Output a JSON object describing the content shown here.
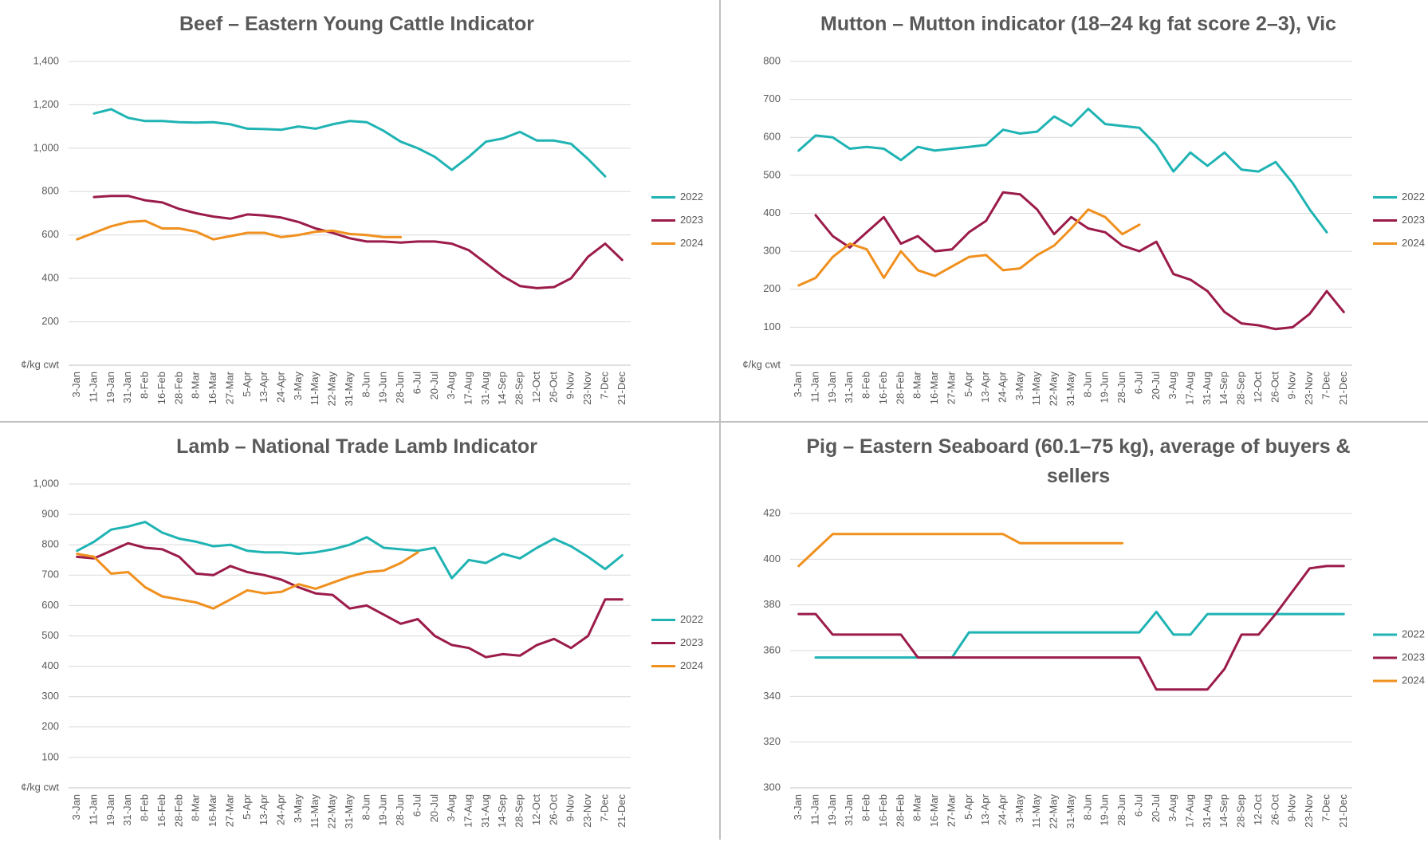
{
  "chart_data": [
    {
      "type": "line",
      "title": "Beef – Eastern Young Cattle Indicator",
      "y_label": "¢/kg cwt",
      "categories": [
        "3-Jan",
        "11-Jan",
        "19-Jan",
        "31-Jan",
        "8-Feb",
        "16-Feb",
        "28-Feb",
        "8-Mar",
        "16-Mar",
        "27-Mar",
        "5-Apr",
        "13-Apr",
        "24-Apr",
        "3-May",
        "11-May",
        "22-May",
        "31-May",
        "8-Jun",
        "19-Jun",
        "28-Jun",
        "6-Jul",
        "20-Jul",
        "3-Aug",
        "17-Aug",
        "31-Aug",
        "14-Sep",
        "28-Sep",
        "12-Oct",
        "26-Oct",
        "9-Nov",
        "23-Nov",
        "7-Dec",
        "21-Dec"
      ],
      "series": [
        {
          "name": "2022",
          "color": "#1fb3b3",
          "values": [
            null,
            1160,
            1180,
            1140,
            1125,
            1125,
            1120,
            1118,
            1120,
            1110,
            1090,
            1088,
            1085,
            1100,
            1090,
            1110,
            1125,
            1120,
            1080,
            1030,
            1000,
            960,
            900,
            960,
            1030,
            1045,
            1075,
            1035,
            1035,
            1020,
            950,
            870,
            null
          ]
        },
        {
          "name": "2023",
          "color": "#9b1b4a",
          "values": [
            null,
            775,
            780,
            780,
            760,
            750,
            720,
            700,
            685,
            675,
            695,
            690,
            680,
            660,
            630,
            610,
            585,
            570,
            570,
            565,
            570,
            570,
            560,
            530,
            470,
            410,
            365,
            355,
            360,
            400,
            500,
            560,
            485
          ]
        },
        {
          "name": "2024",
          "color": "#f0901e",
          "values": [
            580,
            610,
            640,
            660,
            665,
            630,
            630,
            615,
            580,
            595,
            610,
            610,
            590,
            600,
            615,
            620,
            605,
            600,
            590,
            590,
            null,
            null,
            null,
            null,
            null,
            null,
            null,
            null,
            null,
            null,
            null,
            null,
            null
          ]
        }
      ],
      "ylim": [
        0,
        1400
      ],
      "yticks": [
        200,
        400,
        600,
        800,
        {
          "value": 1000,
          "label": "1,000"
        },
        {
          "value": 1200,
          "label": "1,200"
        },
        {
          "value": 1400,
          "label": "1,400"
        }
      ],
      "grid": true,
      "legend": "right"
    },
    {
      "type": "line",
      "title": "Mutton – Mutton indicator (18–24 kg fat score 2–3), Vic",
      "y_label": "¢/kg cwt",
      "categories": [
        "3-Jan",
        "11-Jan",
        "19-Jan",
        "31-Jan",
        "8-Feb",
        "16-Feb",
        "28-Feb",
        "8-Mar",
        "16-Mar",
        "27-Mar",
        "5-Apr",
        "13-Apr",
        "24-Apr",
        "3-May",
        "11-May",
        "22-May",
        "31-May",
        "8-Jun",
        "19-Jun",
        "28-Jun",
        "6-Jul",
        "20-Jul",
        "3-Aug",
        "17-Aug",
        "31-Aug",
        "14-Sep",
        "28-Sep",
        "12-Oct",
        "26-Oct",
        "9-Nov",
        "23-Nov",
        "7-Dec",
        "21-Dec"
      ],
      "series": [
        {
          "name": "2022",
          "color": "#1fb3b3",
          "values": [
            565,
            605,
            600,
            570,
            575,
            570,
            540,
            575,
            565,
            570,
            575,
            580,
            620,
            610,
            615,
            655,
            630,
            675,
            635,
            630,
            625,
            580,
            510,
            560,
            525,
            560,
            515,
            510,
            535,
            480,
            410,
            350,
            null
          ]
        },
        {
          "name": "2023",
          "color": "#9b1b4a",
          "values": [
            null,
            395,
            340,
            310,
            350,
            390,
            320,
            340,
            300,
            305,
            350,
            380,
            455,
            450,
            410,
            345,
            390,
            360,
            350,
            315,
            300,
            325,
            240,
            225,
            195,
            140,
            110,
            105,
            95,
            100,
            135,
            195,
            140
          ]
        },
        {
          "name": "2024",
          "color": "#f0901e",
          "values": [
            210,
            230,
            285,
            320,
            305,
            230,
            300,
            250,
            235,
            260,
            285,
            290,
            250,
            255,
            290,
            315,
            360,
            410,
            390,
            345,
            370,
            null,
            null,
            null,
            null,
            null,
            null,
            null,
            null,
            null,
            null,
            null,
            null
          ]
        }
      ],
      "ylim": [
        0,
        800
      ],
      "yticks": [
        100,
        200,
        300,
        400,
        500,
        600,
        700,
        800
      ],
      "grid": true,
      "legend": "right"
    },
    {
      "type": "line",
      "title": "Lamb – National Trade Lamb Indicator",
      "y_label": "¢/kg cwt",
      "categories": [
        "3-Jan",
        "11-Jan",
        "19-Jan",
        "31-Jan",
        "8-Feb",
        "16-Feb",
        "28-Feb",
        "8-Mar",
        "16-Mar",
        "27-Mar",
        "5-Apr",
        "13-Apr",
        "24-Apr",
        "3-May",
        "11-May",
        "22-May",
        "31-May",
        "8-Jun",
        "19-Jun",
        "28-Jun",
        "6-Jul",
        "20-Jul",
        "3-Aug",
        "17-Aug",
        "31-Aug",
        "14-Sep",
        "28-Sep",
        "12-Oct",
        "26-Oct",
        "9-Nov",
        "23-Nov",
        "7-Dec",
        "21-Dec"
      ],
      "series": [
        {
          "name": "2022",
          "color": "#1fb3b3",
          "values": [
            780,
            810,
            850,
            860,
            875,
            840,
            820,
            810,
            795,
            800,
            780,
            775,
            775,
            770,
            775,
            785,
            800,
            825,
            790,
            785,
            780,
            790,
            690,
            750,
            740,
            770,
            755,
            790,
            820,
            795,
            760,
            720,
            765
          ]
        },
        {
          "name": "2023",
          "color": "#9b1b4a",
          "values": [
            760,
            755,
            780,
            805,
            790,
            785,
            760,
            705,
            700,
            730,
            710,
            700,
            685,
            660,
            640,
            635,
            590,
            600,
            570,
            540,
            555,
            500,
            470,
            460,
            430,
            440,
            435,
            470,
            490,
            460,
            500,
            620,
            620
          ]
        },
        {
          "name": "2024",
          "color": "#f0901e",
          "values": [
            770,
            760,
            705,
            710,
            660,
            630,
            620,
            610,
            590,
            620,
            650,
            640,
            645,
            670,
            655,
            675,
            695,
            710,
            715,
            740,
            775,
            null,
            null,
            null,
            null,
            null,
            null,
            null,
            null,
            null,
            null,
            null,
            null
          ]
        }
      ],
      "ylim": [
        0,
        1000
      ],
      "yticks": [
        100,
        200,
        300,
        400,
        500,
        600,
        700,
        800,
        900,
        {
          "value": 1000,
          "label": "1,000"
        }
      ],
      "grid": true,
      "legend": "right"
    },
    {
      "type": "line",
      "title": "Pig – Eastern Seaboard (60.1–75 kg), average of buyers & sellers",
      "categories": [
        "3-Jan",
        "11-Jan",
        "19-Jan",
        "31-Jan",
        "8-Feb",
        "16-Feb",
        "28-Feb",
        "8-Mar",
        "16-Mar",
        "27-Mar",
        "5-Apr",
        "13-Apr",
        "24-Apr",
        "3-May",
        "11-May",
        "22-May",
        "31-May",
        "8-Jun",
        "19-Jun",
        "28-Jun",
        "6-Jul",
        "20-Jul",
        "3-Aug",
        "17-Aug",
        "31-Aug",
        "14-Sep",
        "28-Sep",
        "12-Oct",
        "26-Oct",
        "9-Nov",
        "23-Nov",
        "7-Dec",
        "21-Dec"
      ],
      "series": [
        {
          "name": "2022",
          "color": "#1fb3b3",
          "values": [
            null,
            357,
            357,
            357,
            357,
            357,
            357,
            357,
            357,
            357,
            368,
            368,
            368,
            368,
            368,
            368,
            368,
            368,
            368,
            368,
            368,
            377,
            367,
            367,
            376,
            376,
            376,
            376,
            376,
            376,
            376,
            376,
            376
          ]
        },
        {
          "name": "2023",
          "color": "#9b1b4a",
          "values": [
            376,
            376,
            367,
            367,
            367,
            367,
            367,
            357,
            357,
            357,
            357,
            357,
            357,
            357,
            357,
            357,
            357,
            357,
            357,
            357,
            357,
            343,
            343,
            343,
            343,
            352,
            367,
            367,
            376,
            386,
            396,
            397,
            397
          ]
        },
        {
          "name": "2024",
          "color": "#f0901e",
          "values": [
            397,
            404,
            411,
            411,
            411,
            411,
            411,
            411,
            411,
            411,
            411,
            411,
            411,
            407,
            407,
            407,
            407,
            407,
            407,
            407,
            null,
            null,
            null,
            null,
            null,
            null,
            null,
            null,
            null,
            null,
            null,
            null,
            null
          ]
        }
      ],
      "ylim": [
        300,
        420
      ],
      "yticks": [
        300,
        320,
        340,
        360,
        380,
        400,
        420
      ],
      "grid": true,
      "legend": "right"
    }
  ]
}
